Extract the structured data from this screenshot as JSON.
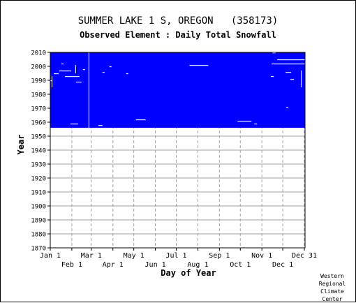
{
  "title": "SUMMER LAKE 1 S, OREGON   (358173)",
  "subtitle": "Observed Element : Daily Total Snowfall",
  "credit": [
    "Western",
    "Regional",
    "Climate",
    "Center"
  ],
  "chart_data": {
    "type": "heatmap",
    "xlabel": "Day of Year",
    "ylabel": "Year",
    "xlim": [
      1,
      366
    ],
    "ylim": [
      1870,
      2010
    ],
    "y_ticks": [
      1870,
      1880,
      1890,
      1900,
      1910,
      1920,
      1930,
      1940,
      1950,
      1960,
      1970,
      1980,
      1990,
      2000,
      2010
    ],
    "x_ticks_top_row": [
      {
        "label": "Jan 1",
        "day": 1
      },
      {
        "label": "Mar 1",
        "day": 60
      },
      {
        "label": "May 1",
        "day": 121
      },
      {
        "label": "Jul 1",
        "day": 182
      },
      {
        "label": "Sep 1",
        "day": 244
      },
      {
        "label": "Nov 1",
        "day": 305
      },
      {
        "label": "Dec 31",
        "day": 366
      }
    ],
    "x_ticks_bottom_row": [
      {
        "label": "Feb 1",
        "day": 32
      },
      {
        "label": "Apr 1",
        "day": 91
      },
      {
        "label": "Jun 1",
        "day": 152
      },
      {
        "label": "Aug 1",
        "day": 213
      },
      {
        "label": "Oct 1",
        "day": 274
      },
      {
        "label": "Dec 1",
        "day": 335
      }
    ],
    "grid": true,
    "grid_style": "dashed",
    "color_observed": "#0000ff",
    "color_missing": "#ffffff",
    "observed_period": {
      "start_year": 1956,
      "end_year": 2009,
      "day_start": 1,
      "day_end": 366
    },
    "missing_segments": [
      {
        "year": 1996,
        "day_start": 14,
        "day_end": 30
      },
      {
        "year": 1994,
        "day_start": 6,
        "day_end": 12
      },
      {
        "year": 1992,
        "day_start": 22,
        "day_end": 42
      },
      {
        "year": 1989,
        "day_start": 1,
        "day_end": 3
      },
      {
        "year": 1988,
        "day_start": 38,
        "day_end": 45
      },
      {
        "year": 2001,
        "day_start": 17,
        "day_end": 19
      },
      {
        "year": 1997,
        "day_start": 48,
        "day_end": 50
      },
      {
        "year": 1995,
        "day_start": 76,
        "day_end": 78
      },
      {
        "year": 1999,
        "day_start": 86,
        "day_end": 88
      },
      {
        "year": 1994,
        "day_start": 110,
        "day_end": 112
      },
      {
        "year": 2000,
        "day_start": 201,
        "day_end": 227
      },
      {
        "year": 1961,
        "day_start": 124,
        "day_end": 137
      },
      {
        "year": 1960,
        "day_start": 270,
        "day_end": 289
      },
      {
        "year": 1958,
        "day_start": 30,
        "day_end": 40
      },
      {
        "year": 1957,
        "day_start": 70,
        "day_end": 75
      },
      {
        "year": 1958,
        "day_start": 294,
        "day_end": 297
      },
      {
        "year": 2009,
        "day_start": 320,
        "day_end": 324
      },
      {
        "year": 2004,
        "day_start": 327,
        "day_end": 366
      },
      {
        "year": 2001,
        "day_start": 319,
        "day_end": 366
      },
      {
        "year": 1995,
        "day_start": 339,
        "day_end": 346
      },
      {
        "year": 1992,
        "day_start": 318,
        "day_end": 321
      },
      {
        "year": 1990,
        "day_start": 346,
        "day_end": 350
      },
      {
        "year": 1970,
        "day_start": 340,
        "day_end": 342
      }
    ],
    "missing_columns": [
      {
        "day": 3,
        "year_start": 1985,
        "year_end": 1992
      },
      {
        "day": 37,
        "year_start": 1995,
        "year_end": 2000
      },
      {
        "day": 56,
        "year_start": 1956,
        "year_end": 2009
      },
      {
        "day": 361,
        "year_start": 1985,
        "year_end": 1996
      }
    ]
  }
}
